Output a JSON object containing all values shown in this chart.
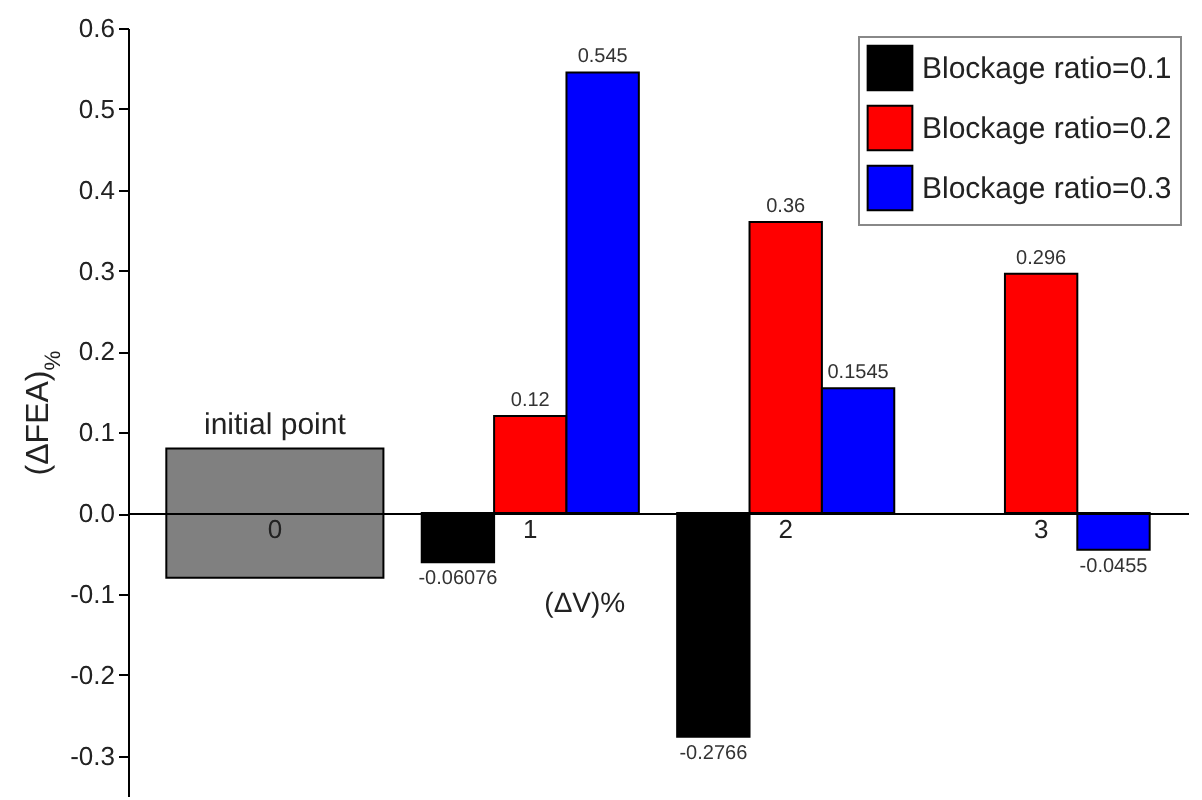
{
  "chart_data": {
    "type": "bar",
    "xlabel": "(ΔV)%",
    "ylabel": "(ΔFEA)$_{%}$",
    "categories": [
      "0",
      "1",
      "2",
      "3"
    ],
    "series": [
      {
        "color": "#808080",
        "values": [
          0.16,
          null,
          null,
          null
        ],
        "base": [
          -0.08,
          null,
          null,
          null
        ]
      },
      {
        "name": "Blockage ratio=0.1",
        "color": "#000000",
        "values": [
          null,
          -0.06076,
          -0.2766,
          null
        ],
        "value_labels": [
          null,
          "-0.06076",
          "-0.2766",
          null
        ]
      },
      {
        "name": "Blockage ratio=0.2",
        "color": "#ff0000",
        "values": [
          null,
          0.12,
          0.36,
          0.296
        ],
        "value_labels": [
          null,
          "0.12",
          "0.36",
          "0.296"
        ]
      },
      {
        "name": "Blockage ratio=0.3",
        "color": "#0000ff",
        "values": [
          null,
          0.545,
          0.1545,
          -0.0455
        ],
        "value_labels": [
          null,
          "0.545",
          "0.1545",
          "-0.0455"
        ]
      }
    ],
    "ylim": [
      -0.35,
      0.6
    ],
    "yticks": [
      {
        "value": -0.3,
        "label": "-0.3"
      },
      {
        "value": -0.2,
        "label": "-0.2"
      },
      {
        "value": -0.1,
        "label": "-0.1"
      },
      {
        "value": 0,
        "label": "0.0"
      },
      {
        "value": 0.1,
        "label": "0.1"
      },
      {
        "value": 0.2,
        "label": "0.2"
      },
      {
        "value": 0.3,
        "label": "0.3"
      },
      {
        "value": 0.4,
        "label": "0.4"
      },
      {
        "value": 0.5,
        "label": "0.5"
      },
      {
        "value": 0.6,
        "label": "0.6"
      }
    ],
    "annotations": [
      {
        "text": "initial point",
        "x": "0",
        "y": 0.08
      }
    ],
    "grid": false,
    "legend": "top right"
  }
}
